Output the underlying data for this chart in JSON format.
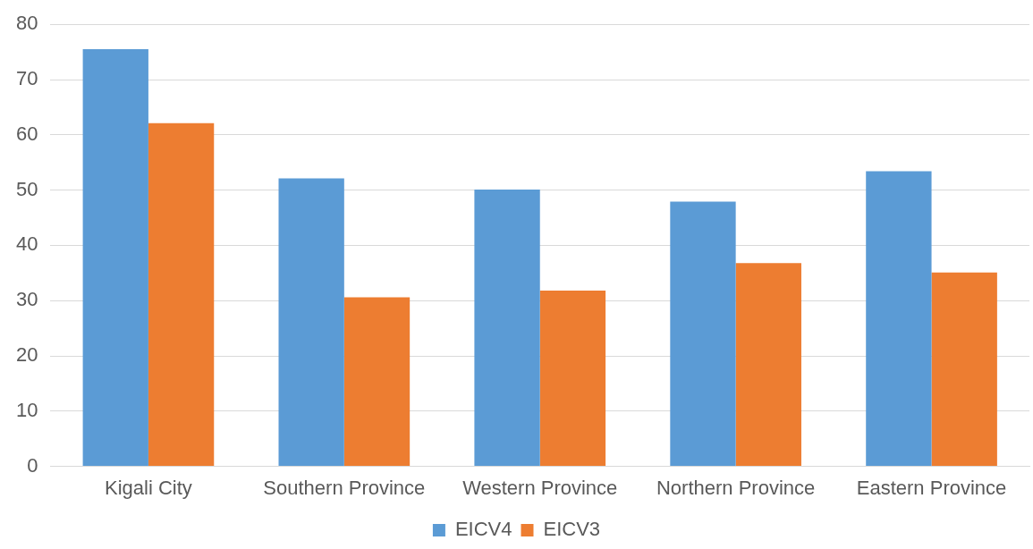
{
  "chart_data": {
    "type": "bar",
    "categories": [
      "Kigali City",
      "Southern Province",
      "Western Province",
      "Northern Province",
      "Eastern Province"
    ],
    "series": [
      {
        "name": "EICV4",
        "color": "#5b9bd5",
        "values": [
          75.5,
          52.1,
          50.1,
          47.9,
          53.4
        ]
      },
      {
        "name": "EICV3",
        "color": "#ed7d31",
        "values": [
          62.1,
          30.6,
          31.8,
          36.8,
          35.1
        ]
      }
    ],
    "ylim": [
      0,
      80
    ],
    "yticks": [
      0,
      10,
      20,
      30,
      40,
      50,
      60,
      70,
      80
    ],
    "grid": "y",
    "legend": "bottom"
  }
}
